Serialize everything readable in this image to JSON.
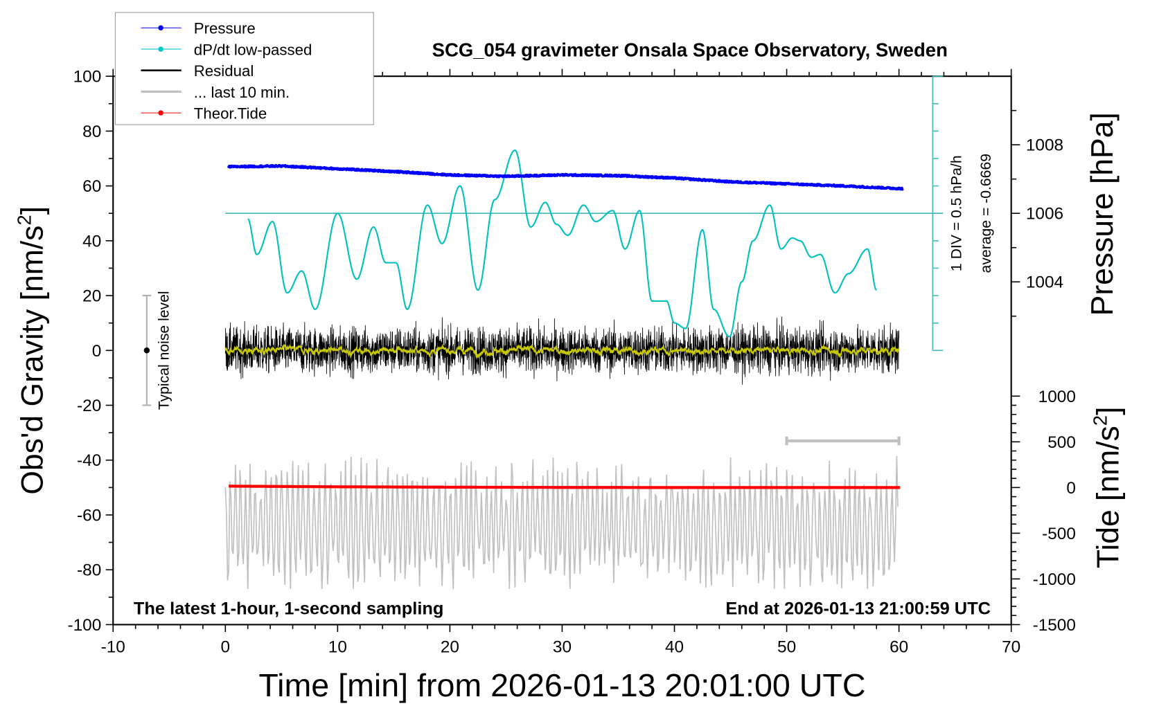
{
  "chart_data": {
    "type": "line",
    "title": "SCG_054 gravimeter Onsala Space Observatory, Sweden",
    "xlabel": "Time [min] from 2026-01-13 20:01:00 UTC",
    "ylabel_left": "Obs'd Gravity [nm/s",
    "ylabel_left_sup": "2",
    "ylabel_left_end": "]",
    "ylabel_pressure": "Pressure [hPa]",
    "ylabel_tide": "Tide [nm/s",
    "ylabel_tide_sup": "2",
    "ylabel_tide_end": "]",
    "xlim": [
      -10,
      70
    ],
    "ylim": [
      -100,
      100
    ],
    "xticks": [
      "-10",
      "0",
      "10",
      "20",
      "30",
      "40",
      "50",
      "60",
      "70"
    ],
    "yticks": [
      "100",
      "80",
      "60",
      "40",
      "20",
      "0",
      "-20",
      "-40",
      "-60",
      "-80",
      "-100"
    ],
    "pressure_ticks": [
      "1008",
      "1006",
      "1004"
    ],
    "tide_ticks": [
      "1000",
      "500",
      "0",
      "-500",
      "-1000",
      "-1500"
    ],
    "grid": false,
    "legend_placement": "top-left",
    "legend": [
      {
        "label": "Pressure",
        "color": "#0000ff",
        "marker": true
      },
      {
        "label": "dP/dt low-passed",
        "color": "#00c8c8",
        "marker": true
      },
      {
        "label": "Residual",
        "color": "#000000",
        "marker": false
      },
      {
        "label": "... last 10 min.",
        "color": "#c0c0c0",
        "marker": false
      },
      {
        "label": "Theor.Tide",
        "color": "#ff0000",
        "marker": true
      }
    ],
    "annotations": {
      "bottom_left": "The latest 1-hour, 1-second sampling",
      "bottom_right": "End at 2026-01-13 21:00:59 UTC",
      "noise": "Typical noise level",
      "div": "1 DIV = 0.5 hPa/h",
      "average": "average = -0.6669"
    },
    "series": {
      "pressure_hPa": {
        "x": [
          0.3,
          5,
          10,
          15,
          20,
          25,
          30,
          35,
          40,
          45,
          50,
          55,
          60.3
        ],
        "y": [
          1007.36,
          1007.38,
          1007.3,
          1007.22,
          1007.12,
          1007.08,
          1007.12,
          1007.1,
          1007.03,
          1006.92,
          1006.86,
          1006.8,
          1006.72
        ]
      },
      "dpdt_hPa_per_h": {
        "x": [
          2,
          2.8,
          4.2,
          5.5,
          6.8,
          8,
          10,
          11.7,
          13.2,
          14.3,
          15.2,
          16.2,
          18,
          19.3,
          20.9,
          22.5,
          24,
          25.8,
          27.2,
          28.5,
          29.5,
          30.5,
          31.9,
          33,
          34.5,
          35.6,
          36.9,
          38,
          39.3,
          40,
          41,
          42.5,
          43.5,
          44.9,
          46,
          47,
          48.5,
          49.5,
          50.5,
          51.2,
          52.2,
          53,
          54.3,
          55.5,
          57.2,
          58
        ],
        "y": [
          -0.1,
          -0.75,
          -0.15,
          -1.45,
          -1.05,
          -1.75,
          0,
          -1.2,
          -0.25,
          -0.9,
          -0.9,
          -1.75,
          0.15,
          -0.55,
          0.5,
          -1.4,
          0.25,
          1.15,
          -0.25,
          0.2,
          -0.2,
          -0.4,
          0.15,
          -0.15,
          0.05,
          -0.65,
          0.05,
          -1.6,
          -1.6,
          -2.0,
          -2.1,
          -0.3,
          -1.75,
          -2.25,
          -1.25,
          -0.5,
          0.15,
          -0.65,
          -0.45,
          -0.5,
          -0.8,
          -0.75,
          -1.45,
          -1.1,
          -0.65,
          -1.4
        ]
      },
      "residual_range_nm_s2": [
        -34,
        31
      ],
      "last10min_range_nm_s2": [
        -87,
        -35
      ],
      "theor_tide_nm_s2": {
        "x": [
          0.3,
          10,
          20,
          30,
          40,
          50,
          60.3
        ],
        "y": [
          15,
          8,
          4,
          1,
          0,
          0,
          0
        ]
      }
    },
    "pressure_axis": {
      "value_at_left_50": 1006,
      "hPa_per_left_unit": 0.08
    },
    "tide_axis": {
      "value_at_left_-50": 0,
      "nm_s2_per_left_unit": 30
    },
    "dpdt_axis": {
      "center_hPa_per_h": 0,
      "hPa_per_div": 0.5,
      "divisions": 10
    },
    "noise_bar": {
      "x": -7,
      "range": [
        -20,
        20
      ]
    },
    "scale_bar_last10": {
      "x_range": [
        50,
        60
      ],
      "y": -33
    },
    "colors": {
      "pressure": "#0000ff",
      "dpdt": "#00c0c0",
      "residual": "#000000",
      "smoothed": "#c8c800",
      "last10": "#c0c0c0",
      "tide": "#ff0000"
    }
  }
}
